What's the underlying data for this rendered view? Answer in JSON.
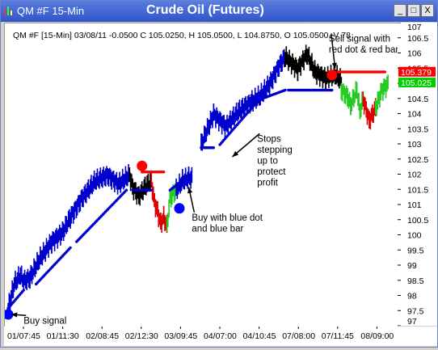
{
  "window": {
    "title": "QM #F 15-Min",
    "chart_title": "Crude Oil (Futures)",
    "buttons": {
      "minimize": "_",
      "maximize": "□",
      "close": "X"
    }
  },
  "chart_data": {
    "type": "line",
    "info_line": "QM #F [15-Min] 03/08/11  -0.0500 C 105.0250, H 105.0500, L 104.8750, O 105.0500, V 78",
    "x_tick_labels": [
      "01/07:45",
      "01/11:30",
      "02/08:45",
      "02/12:30",
      "03/09:45",
      "04/07:00",
      "04/10:45",
      "07/08:00",
      "07/11:45",
      "08/09:00"
    ],
    "ylim": [
      97,
      107
    ],
    "y_ticks": [
      97,
      97.5,
      98,
      98.5,
      99,
      99.5,
      100,
      100.5,
      101,
      101.5,
      102,
      102.5,
      103,
      103.5,
      104,
      104.5,
      105,
      105.5,
      106,
      106.5,
      107
    ],
    "price_labels": [
      {
        "text": "105.379",
        "value": 105.379,
        "color": "#ff0000"
      },
      {
        "text": "105.025",
        "value": 105.025,
        "color": "#00cc00"
      }
    ],
    "price_segments": [
      {
        "x": [
          0,
          4,
          8,
          10,
          14
        ],
        "y": [
          97.6,
          98.4,
          98.7,
          98.5,
          98.6
        ],
        "color": "#0000cc"
      },
      {
        "x": [
          14,
          20,
          28,
          35,
          40
        ],
        "y": [
          98.6,
          99.2,
          99.8,
          100.1,
          100.6
        ],
        "color": "#0000cc"
      },
      {
        "x": [
          40,
          47,
          56,
          64,
          71,
          78
        ],
        "y": [
          100.6,
          101.2,
          101.8,
          102.0,
          101.7,
          102.0
        ],
        "color": "#0000cc"
      },
      {
        "x": [
          78,
          80,
          84,
          88,
          92
        ],
        "y": [
          102.0,
          101.6,
          101.3,
          101.6,
          101.8
        ],
        "color": "#000000"
      },
      {
        "x": [
          92,
          94,
          96,
          98,
          100,
          102
        ],
        "y": [
          101.8,
          101.1,
          100.8,
          100.4,
          100.6,
          100.3
        ],
        "color": "#dd0000"
      },
      {
        "x": [
          102,
          104,
          106,
          108
        ],
        "y": [
          100.3,
          101.2,
          101.4,
          101.5
        ],
        "color": "#22cc22"
      },
      {
        "x": [
          108,
          112,
          116,
          118
        ],
        "y": [
          101.5,
          101.8,
          101.9,
          101.9
        ],
        "color": "#0000cc"
      },
      {
        "x": [
          124,
          132,
          140,
          148,
          156
        ],
        "y": [
          103.0,
          104.0,
          103.6,
          104.1,
          104.4
        ],
        "color": "#0000cc"
      },
      {
        "x": [
          156,
          162,
          168,
          174,
          178
        ],
        "y": [
          104.4,
          104.6,
          105.0,
          105.6,
          105.9
        ],
        "color": "#0000cc"
      },
      {
        "x": [
          178,
          186,
          192,
          197
        ],
        "y": [
          105.9,
          105.5,
          106.0,
          105.4
        ],
        "color": "#000000"
      },
      {
        "x": [
          197,
          204,
          210,
          214
        ],
        "y": [
          105.4,
          105.2,
          105.3,
          105.1
        ],
        "color": "#000000"
      },
      {
        "x": [
          214,
          218,
          220,
          224,
          226,
          228
        ],
        "y": [
          104.8,
          104.6,
          104.3,
          104.8,
          104.1,
          104.5
        ],
        "color": "#22cc22"
      },
      {
        "x": [
          228,
          232,
          236
        ],
        "y": [
          104.5,
          103.8,
          104.2
        ],
        "color": "#dd0000"
      },
      {
        "x": [
          236,
          240,
          244
        ],
        "y": [
          104.2,
          104.8,
          105.0
        ],
        "color": "#22cc22"
      }
    ],
    "stop_dots": [
      {
        "x_start": 0,
        "x_end": 10,
        "y_start": 97.6,
        "y_end": 98.2,
        "color": "#0000cc"
      },
      {
        "x_start": 18,
        "x_end": 40,
        "y_start": 98.4,
        "y_end": 99.6,
        "color": "#0000cc"
      },
      {
        "x_start": 44,
        "x_end": 76,
        "y_start": 99.8,
        "y_end": 101.5,
        "color": "#0000cc"
      },
      {
        "x_start": 80,
        "x_end": 92,
        "y_start": 101.5,
        "y_end": 101.5,
        "color": "#0000cc"
      },
      {
        "x_start": 86,
        "x_end": 100,
        "y_start": 102.1,
        "y_end": 102.1,
        "color": "#ff0000"
      },
      {
        "x_start": 104,
        "x_end": 114,
        "y_start": 101.5,
        "y_end": 101.9,
        "color": "#0000cc"
      },
      {
        "x_start": 124,
        "x_end": 132,
        "y_start": 102.9,
        "y_end": 102.9,
        "color": "#0000cc"
      },
      {
        "x_start": 136,
        "x_end": 158,
        "y_start": 103.0,
        "y_end": 104.3,
        "color": "#0000cc"
      },
      {
        "x_start": 162,
        "x_end": 178,
        "y_start": 104.5,
        "y_end": 104.8,
        "color": "#0000cc"
      },
      {
        "x_start": 180,
        "x_end": 208,
        "y_start": 104.8,
        "y_end": 104.8,
        "color": "#0000cc"
      },
      {
        "x_start": 212,
        "x_end": 242,
        "y_start": 105.4,
        "y_end": 105.4,
        "color": "#ff0000"
      }
    ],
    "signals": [
      {
        "x": 0,
        "y": 97.4,
        "color": "#0000ff",
        "kind": "buy"
      },
      {
        "x": 86,
        "y": 102.3,
        "color": "#ff0000",
        "kind": "sell"
      },
      {
        "x": 110,
        "y": 100.9,
        "color": "#0000ff",
        "kind": "buy"
      },
      {
        "x": 208,
        "y": 105.3,
        "color": "#ff0000",
        "kind": "sell"
      }
    ],
    "annotations": [
      {
        "lines": [
          "Buy signal"
        ],
        "x": 10,
        "y": 97.1,
        "arrow_to": [
          2,
          97.4
        ]
      },
      {
        "lines": [
          "Buy with blue dot",
          "and blue bar"
        ],
        "x": 118,
        "y": 100.5,
        "arrow_to": [
          116,
          101.6
        ]
      },
      {
        "lines": [
          "Stops",
          "stepping",
          "up to",
          "protect",
          "profit"
        ],
        "x": 160,
        "y": 103.1,
        "arrow_to": [
          144,
          102.6
        ]
      },
      {
        "lines": [
          "Sell signal with",
          "red dot & red bar"
        ],
        "x": 206,
        "y": 106.4,
        "arrow_to": [
          210,
          105.5
        ]
      }
    ]
  }
}
